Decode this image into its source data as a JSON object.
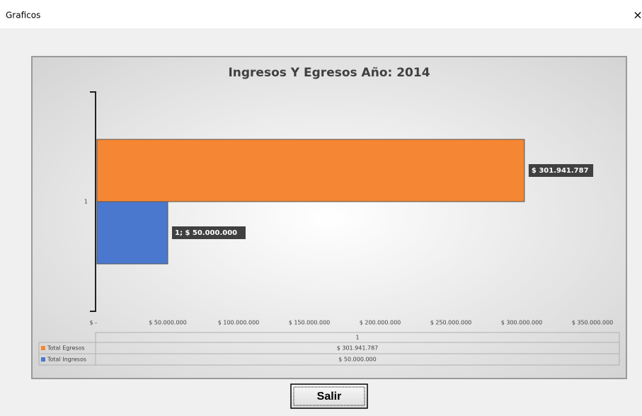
{
  "window": {
    "title": "Graficos",
    "close": "×",
    "button": "Salir"
  },
  "chart_data": {
    "type": "bar",
    "orientation": "horizontal",
    "title": "Ingresos Y Egresos Año: 2014",
    "categories": [
      "1"
    ],
    "series": [
      {
        "name": "Total Egresos",
        "color": "#f58634",
        "values": [
          301941787
        ],
        "value_labels": [
          "$ 301.941.787"
        ]
      },
      {
        "name": "Total Ingresos",
        "color": "#4a78cf",
        "values": [
          50000000
        ],
        "value_labels": [
          "1; $ 50.000.000"
        ]
      }
    ],
    "xlim": [
      0,
      350000000
    ],
    "xticks": [
      {
        "value": 0,
        "label": "$ -"
      },
      {
        "value": 50000000,
        "label": "$ 50.000.000"
      },
      {
        "value": 100000000,
        "label": "$ 100.000.000"
      },
      {
        "value": 150000000,
        "label": "$ 150.000.000"
      },
      {
        "value": 200000000,
        "label": "$ 200.000.000"
      },
      {
        "value": 250000000,
        "label": "$ 250.000.000"
      },
      {
        "value": 300000000,
        "label": "$ 300.000.000"
      },
      {
        "value": 350000000,
        "label": "$ 350.000.000"
      }
    ],
    "data_table": {
      "rows": [
        [
          "$ 301.941.787"
        ],
        [
          "$ 50.000.000"
        ]
      ]
    }
  }
}
